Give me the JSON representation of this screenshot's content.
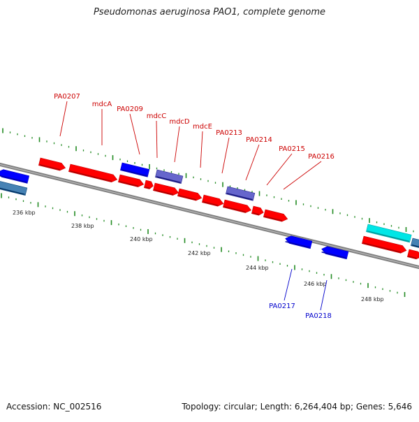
{
  "title": "Pseudomonas aeruginosa PAO1, complete genome",
  "footer": {
    "accession": "Accession: NC_002516",
    "summary": "Topology: circular; Length: 6,264,404 bp; Genes: 5,646"
  },
  "colors": {
    "forward_gene": "#ff0000",
    "reverse_gene": "#0000ff",
    "other_gene": "#6666cc",
    "rna_gene": "#00e6e6",
    "steelblue_gene": "#4682b4",
    "backbone": "#808080",
    "tick": "#228b22",
    "label_forward": "#cc0000",
    "label_reverse": "#0000cc"
  },
  "scale_labels": [
    "236 kbp",
    "238 kbp",
    "240 kbp",
    "242 kbp",
    "244 kbp",
    "246 kbp",
    "248 kbp"
  ],
  "gene_labels_forward": [
    "PA0207",
    "mdcA",
    "PA0209",
    "mdcC",
    "mdcD",
    "mdcE",
    "PA0213",
    "PA0214",
    "PA0215",
    "PA0216"
  ],
  "gene_labels_reverse": [
    "PA0217",
    "PA0218"
  ]
}
